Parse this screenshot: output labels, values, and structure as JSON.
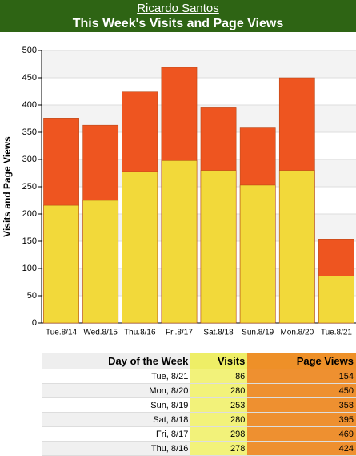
{
  "header": {
    "user": "Ricardo Santos",
    "title": "This Week's Visits and Page Views"
  },
  "chart_data": {
    "type": "bar",
    "overlap": true,
    "y_label": "Visits and Page Views",
    "categories": [
      "Tue.8/14",
      "Wed.8/15",
      "Thu.8/16",
      "Fri.8/17",
      "Sat.8/18",
      "Sun.8/19",
      "Mon.8/20",
      "Tue.8/21"
    ],
    "series": [
      {
        "name": "Page Views",
        "color": "#ee5520",
        "values": [
          376,
          363,
          424,
          469,
          395,
          358,
          450,
          154
        ]
      },
      {
        "name": "Visits",
        "color": "#f2d93a",
        "values": [
          216,
          225,
          278,
          298,
          280,
          253,
          280,
          86
        ]
      }
    ],
    "ylim": [
      0,
      500
    ],
    "yticks": [
      0,
      50,
      100,
      150,
      200,
      250,
      300,
      350,
      400,
      450,
      500
    ],
    "grid": true
  },
  "table": {
    "columns": [
      "Day of the Week",
      "Visits",
      "Page Views"
    ],
    "rows": [
      [
        "Tue, 8/21",
        86,
        154
      ],
      [
        "Mon, 8/20",
        280,
        450
      ],
      [
        "Sun, 8/19",
        253,
        358
      ],
      [
        "Sat, 8/18",
        280,
        395
      ],
      [
        "Fri, 8/17",
        298,
        469
      ],
      [
        "Thu, 8/16",
        278,
        424
      ]
    ]
  }
}
